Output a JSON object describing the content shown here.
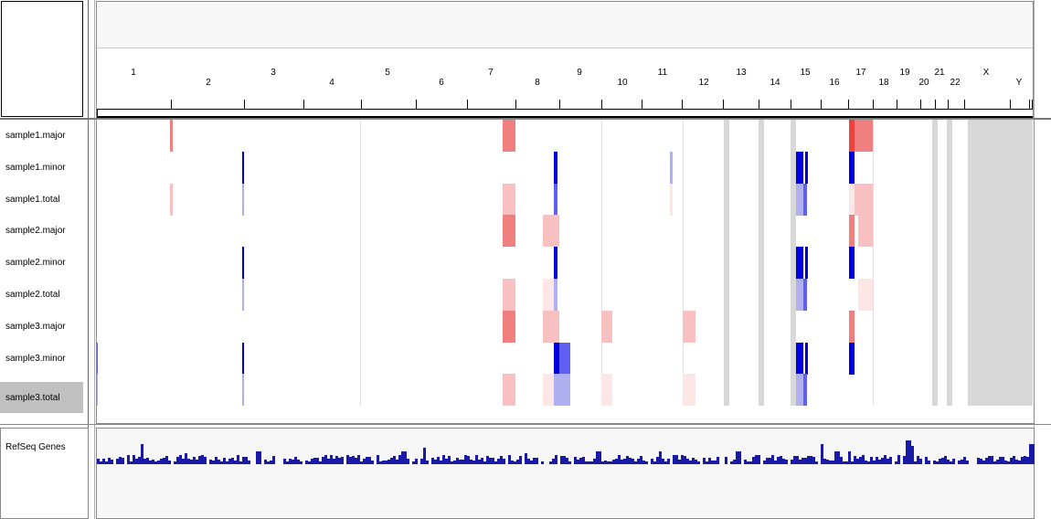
{
  "tracks": [
    {
      "label": "sample1.major",
      "selected": false
    },
    {
      "label": "sample1.minor",
      "selected": false
    },
    {
      "label": "sample1.total",
      "selected": false
    },
    {
      "label": "sample2.major",
      "selected": false
    },
    {
      "label": "sample2.minor",
      "selected": false
    },
    {
      "label": "sample2.total",
      "selected": false
    },
    {
      "label": "sample3.major",
      "selected": false
    },
    {
      "label": "sample3.minor",
      "selected": false
    },
    {
      "label": "sample3.total",
      "selected": true
    }
  ],
  "gene_track": {
    "label": "RefSeq Genes"
  },
  "chromosomes": [
    "1",
    "2",
    "3",
    "4",
    "5",
    "6",
    "7",
    "8",
    "9",
    "10",
    "11",
    "12",
    "13",
    "14",
    "15",
    "16",
    "17",
    "18",
    "19",
    "20",
    "21",
    "22",
    "X",
    "Y"
  ],
  "colors": {
    "gain_strong": "#f04040",
    "gain_medium": "#f08080",
    "gain_light": "#f8c0c0",
    "gain_faint": "#fde6e6",
    "loss_strong": "#0000dd",
    "loss_medium": "#6060f0",
    "loss_light": "#b0b0f0",
    "masked": "#d8d8d8",
    "gene_density": "#1a1aa8"
  }
}
